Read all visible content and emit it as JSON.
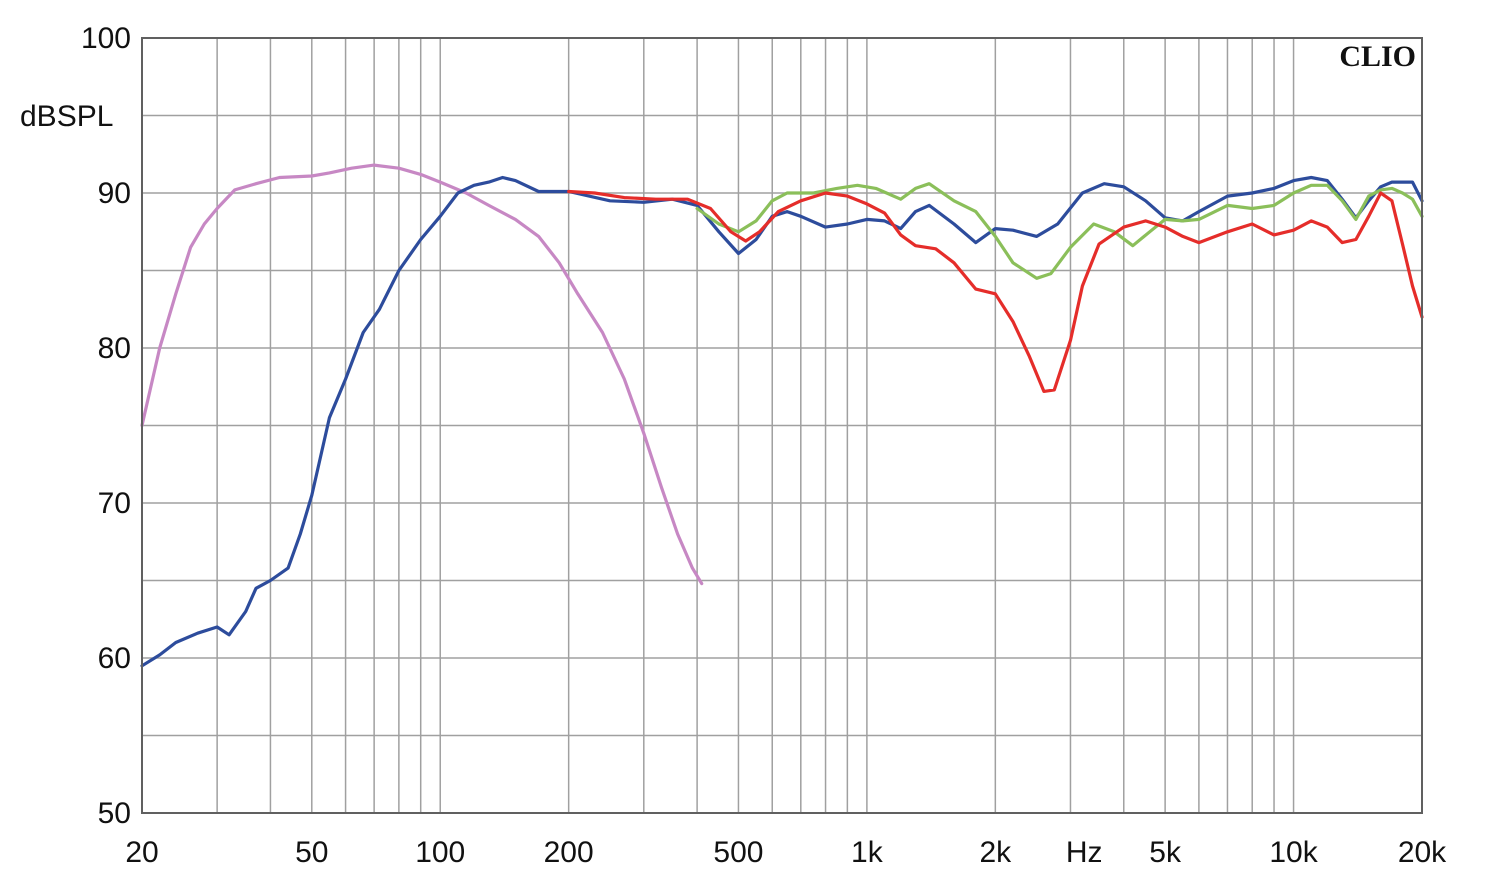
{
  "chart_data": {
    "type": "line",
    "brand": "CLIO",
    "ylabel": "dBSPL",
    "xlabel": "Hz",
    "x_scale": "log",
    "xlim": [
      20,
      20000
    ],
    "ylim": [
      50,
      100
    ],
    "grid": true,
    "x_major_ticks": [
      {
        "value": 20,
        "label": "20"
      },
      {
        "value": 50,
        "label": "50"
      },
      {
        "value": 100,
        "label": "100"
      },
      {
        "value": 200,
        "label": "200"
      },
      {
        "value": 500,
        "label": "500"
      },
      {
        "value": 1000,
        "label": "1k"
      },
      {
        "value": 2000,
        "label": "2k"
      },
      {
        "value": 5000,
        "label": "5k"
      },
      {
        "value": 10000,
        "label": "10k"
      },
      {
        "value": 20000,
        "label": "20k"
      }
    ],
    "x_minor_ticks": [
      30,
      40,
      60,
      70,
      80,
      90,
      300,
      400,
      600,
      700,
      800,
      900,
      3000,
      4000,
      6000,
      7000,
      8000,
      9000
    ],
    "y_ticks": [
      {
        "value": 50,
        "label": "50"
      },
      {
        "value": 60,
        "label": "60"
      },
      {
        "value": 70,
        "label": "70"
      },
      {
        "value": 80,
        "label": "80"
      },
      {
        "value": 90,
        "label": "90"
      },
      {
        "value": 100,
        "label": "100"
      }
    ],
    "y_minor_ticks": [
      55,
      65,
      75,
      85,
      95
    ],
    "colors": {
      "grid": "#a0a0a0",
      "frame": "#606060"
    },
    "series": [
      {
        "color": "#c788c4",
        "points": [
          [
            20,
            75
          ],
          [
            22,
            80
          ],
          [
            24,
            83.5
          ],
          [
            26,
            86.5
          ],
          [
            28,
            88
          ],
          [
            30,
            89
          ],
          [
            33,
            90.2
          ],
          [
            37,
            90.6
          ],
          [
            42,
            91
          ],
          [
            50,
            91.1
          ],
          [
            55,
            91.3
          ],
          [
            62,
            91.6
          ],
          [
            70,
            91.8
          ],
          [
            80,
            91.6
          ],
          [
            90,
            91.2
          ],
          [
            100,
            90.7
          ],
          [
            115,
            90
          ],
          [
            130,
            89.2
          ],
          [
            150,
            88.3
          ],
          [
            170,
            87.2
          ],
          [
            190,
            85.5
          ],
          [
            210,
            83.5
          ],
          [
            240,
            81
          ],
          [
            270,
            78
          ],
          [
            300,
            74.5
          ],
          [
            330,
            71
          ],
          [
            360,
            68
          ],
          [
            390,
            65.8
          ],
          [
            410,
            64.8
          ]
        ]
      },
      {
        "color": "#2d4c9c",
        "points": [
          [
            20,
            59.5
          ],
          [
            22,
            60.2
          ],
          [
            24,
            61
          ],
          [
            27,
            61.6
          ],
          [
            30,
            62
          ],
          [
            32,
            61.5
          ],
          [
            35,
            63
          ],
          [
            37,
            64.5
          ],
          [
            40,
            65
          ],
          [
            44,
            65.8
          ],
          [
            47,
            68
          ],
          [
            50,
            70.5
          ],
          [
            55,
            75.5
          ],
          [
            60,
            78
          ],
          [
            66,
            81
          ],
          [
            72,
            82.5
          ],
          [
            80,
            85
          ],
          [
            90,
            87
          ],
          [
            100,
            88.5
          ],
          [
            110,
            90
          ],
          [
            120,
            90.5
          ],
          [
            130,
            90.7
          ],
          [
            140,
            91
          ],
          [
            150,
            90.8
          ],
          [
            170,
            90.1
          ],
          [
            200,
            90.1
          ],
          [
            250,
            89.5
          ],
          [
            300,
            89.4
          ],
          [
            350,
            89.6
          ],
          [
            400,
            89.2
          ],
          [
            450,
            87.5
          ],
          [
            500,
            86.1
          ],
          [
            550,
            87
          ],
          [
            600,
            88.5
          ],
          [
            650,
            88.8
          ],
          [
            700,
            88.5
          ],
          [
            800,
            87.8
          ],
          [
            900,
            88
          ],
          [
            1000,
            88.3
          ],
          [
            1100,
            88.2
          ],
          [
            1200,
            87.7
          ],
          [
            1300,
            88.8
          ],
          [
            1400,
            89.2
          ],
          [
            1600,
            88
          ],
          [
            1800,
            86.8
          ],
          [
            2000,
            87.7
          ],
          [
            2200,
            87.6
          ],
          [
            2500,
            87.2
          ],
          [
            2800,
            88
          ],
          [
            3200,
            90
          ],
          [
            3600,
            90.6
          ],
          [
            4000,
            90.4
          ],
          [
            4500,
            89.5
          ],
          [
            5000,
            88.4
          ],
          [
            5500,
            88.2
          ],
          [
            6000,
            88.8
          ],
          [
            7000,
            89.8
          ],
          [
            8000,
            90
          ],
          [
            9000,
            90.3
          ],
          [
            10000,
            90.8
          ],
          [
            11000,
            91
          ],
          [
            12000,
            90.8
          ],
          [
            13000,
            89.6
          ],
          [
            14000,
            88.4
          ],
          [
            15000,
            89.5
          ],
          [
            16000,
            90.4
          ],
          [
            17000,
            90.7
          ],
          [
            18000,
            90.7
          ],
          [
            19000,
            90.7
          ],
          [
            20000,
            89.5
          ]
        ]
      },
      {
        "color": "#8bbf5a",
        "points": [
          [
            400,
            89
          ],
          [
            450,
            88
          ],
          [
            500,
            87.5
          ],
          [
            550,
            88.2
          ],
          [
            600,
            89.5
          ],
          [
            650,
            90
          ],
          [
            750,
            90
          ],
          [
            850,
            90.3
          ],
          [
            950,
            90.5
          ],
          [
            1050,
            90.3
          ],
          [
            1200,
            89.6
          ],
          [
            1300,
            90.3
          ],
          [
            1400,
            90.6
          ],
          [
            1600,
            89.5
          ],
          [
            1800,
            88.8
          ],
          [
            2000,
            87.2
          ],
          [
            2200,
            85.5
          ],
          [
            2500,
            84.5
          ],
          [
            2700,
            84.8
          ],
          [
            3000,
            86.5
          ],
          [
            3400,
            88
          ],
          [
            3800,
            87.5
          ],
          [
            4200,
            86.6
          ],
          [
            4600,
            87.5
          ],
          [
            5000,
            88.3
          ],
          [
            5500,
            88.2
          ],
          [
            6000,
            88.3
          ],
          [
            7000,
            89.2
          ],
          [
            8000,
            89
          ],
          [
            9000,
            89.2
          ],
          [
            10000,
            90
          ],
          [
            11000,
            90.5
          ],
          [
            12000,
            90.5
          ],
          [
            13000,
            89.5
          ],
          [
            14000,
            88.3
          ],
          [
            15000,
            89.8
          ],
          [
            16000,
            90.2
          ],
          [
            17000,
            90.3
          ],
          [
            18000,
            90
          ],
          [
            19000,
            89.6
          ],
          [
            20000,
            88.5
          ]
        ]
      },
      {
        "color": "#e52d2a",
        "points": [
          [
            200,
            90.1
          ],
          [
            230,
            90
          ],
          [
            270,
            89.7
          ],
          [
            320,
            89.6
          ],
          [
            380,
            89.6
          ],
          [
            430,
            89
          ],
          [
            480,
            87.5
          ],
          [
            520,
            86.9
          ],
          [
            560,
            87.5
          ],
          [
            620,
            88.8
          ],
          [
            700,
            89.5
          ],
          [
            800,
            90
          ],
          [
            900,
            89.8
          ],
          [
            1000,
            89.3
          ],
          [
            1100,
            88.7
          ],
          [
            1200,
            87.3
          ],
          [
            1300,
            86.6
          ],
          [
            1450,
            86.4
          ],
          [
            1600,
            85.5
          ],
          [
            1800,
            83.8
          ],
          [
            2000,
            83.5
          ],
          [
            2200,
            81.7
          ],
          [
            2400,
            79.5
          ],
          [
            2600,
            77.2
          ],
          [
            2750,
            77.3
          ],
          [
            3000,
            80.5
          ],
          [
            3200,
            84
          ],
          [
            3500,
            86.7
          ],
          [
            4000,
            87.8
          ],
          [
            4500,
            88.2
          ],
          [
            5000,
            87.8
          ],
          [
            5500,
            87.2
          ],
          [
            6000,
            86.8
          ],
          [
            7000,
            87.5
          ],
          [
            8000,
            88
          ],
          [
            9000,
            87.3
          ],
          [
            10000,
            87.6
          ],
          [
            11000,
            88.2
          ],
          [
            12000,
            87.8
          ],
          [
            13000,
            86.8
          ],
          [
            14000,
            87
          ],
          [
            15000,
            88.5
          ],
          [
            16000,
            90
          ],
          [
            17000,
            89.5
          ],
          [
            18000,
            86.7
          ],
          [
            19000,
            84
          ],
          [
            20000,
            82
          ]
        ]
      }
    ]
  }
}
